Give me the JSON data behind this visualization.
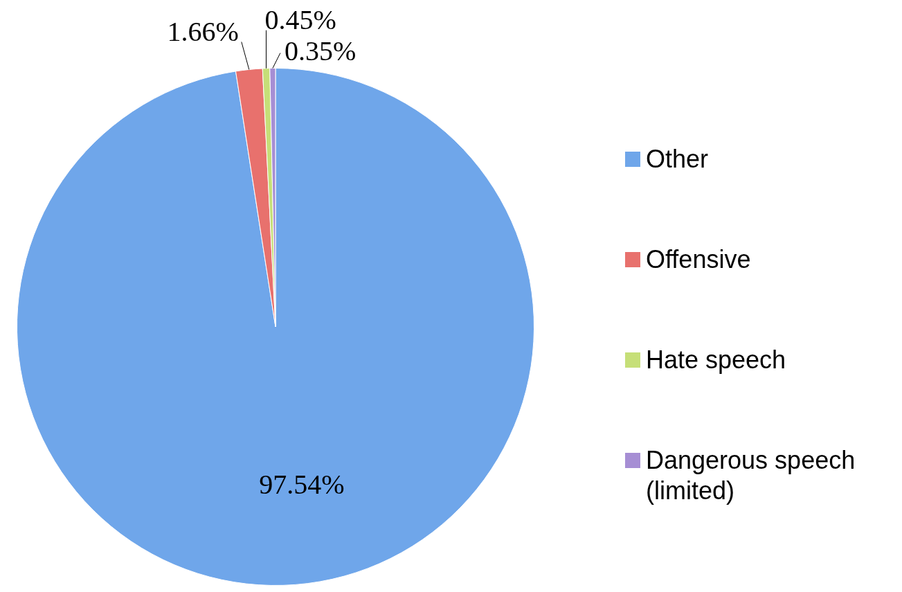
{
  "chart_data": {
    "type": "pie",
    "categories": [
      "Other",
      "Offensive",
      "Hate speech",
      "Dangerous speech (limited)"
    ],
    "values": [
      97.54,
      1.66,
      0.45,
      0.35
    ],
    "value_labels": [
      "97.54%",
      "1.66%",
      "0.45%",
      "0.35%"
    ],
    "colors": [
      "#6fa6ea",
      "#e8716d",
      "#c6df78",
      "#a68ed4"
    ],
    "legend": "right"
  }
}
